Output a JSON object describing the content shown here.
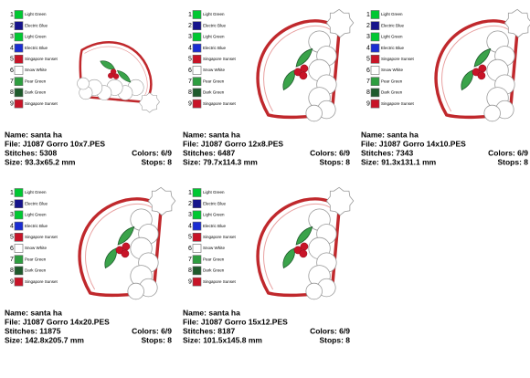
{
  "panels": [
    {
      "colors": [
        {
          "number": 1,
          "name": "Light Green",
          "color": "#00c832"
        },
        {
          "number": 2,
          "name": "Electric Blue",
          "color": "#16148c"
        },
        {
          "number": 3,
          "name": "Light Green",
          "color": "#00c832"
        },
        {
          "number": 4,
          "name": "Electric Blue",
          "color": "#1a2dd2"
        },
        {
          "number": 5,
          "name": "Singapore Sunset",
          "color": "#c81428"
        },
        {
          "number": 6,
          "name": "Snow White",
          "color": "#ffffff"
        },
        {
          "number": 7,
          "name": "Pear Green",
          "color": "#2e9e40"
        },
        {
          "number": 8,
          "name": "Dark Green",
          "color": "#1e5a2c"
        },
        {
          "number": 9,
          "name": "Singapore Sunset",
          "color": "#c81428"
        }
      ],
      "name": "Name: santa ha",
      "file": "File: J1087 Gorro 10x7.PES",
      "stitches": "Stitches: 5308",
      "colors_count": "Colors: 6/9",
      "size": "Size: 93.3x65.2 mm",
      "stops": "Stops: 8"
    },
    {
      "colors": [
        {
          "number": 1,
          "name": "Light Green",
          "color": "#00c832"
        },
        {
          "number": 2,
          "name": "Electric Blue",
          "color": "#16148c"
        },
        {
          "number": 3,
          "name": "Light Green",
          "color": "#00c832"
        },
        {
          "number": 4,
          "name": "Electric Blue",
          "color": "#1a2dd2"
        },
        {
          "number": 5,
          "name": "Singapore Sunset",
          "color": "#c81428"
        },
        {
          "number": 6,
          "name": "Snow White",
          "color": "#ffffff"
        },
        {
          "number": 7,
          "name": "Pear Green",
          "color": "#2e9e40"
        },
        {
          "number": 8,
          "name": "Dark Green",
          "color": "#1e5a2c"
        },
        {
          "number": 9,
          "name": "Singapore Sunset",
          "color": "#c81428"
        }
      ],
      "name": "Name: santa ha",
      "file": "File: J1087 Gorro 12x8.PES",
      "stitches": "Stitches: 6487",
      "colors_count": "Colors: 6/9",
      "size": "Size: 79.7x114.3 mm",
      "stops": "Stops: 8"
    },
    {
      "colors": [
        {
          "number": 1,
          "name": "Light Green",
          "color": "#00c832"
        },
        {
          "number": 2,
          "name": "Electric Blue",
          "color": "#16148c"
        },
        {
          "number": 3,
          "name": "Light Green",
          "color": "#00c832"
        },
        {
          "number": 4,
          "name": "Electric Blue",
          "color": "#1a2dd2"
        },
        {
          "number": 5,
          "name": "Singapore Sunset",
          "color": "#c81428"
        },
        {
          "number": 6,
          "name": "Snow White",
          "color": "#ffffff"
        },
        {
          "number": 7,
          "name": "Pear Green",
          "color": "#2e9e40"
        },
        {
          "number": 8,
          "name": "Dark Green",
          "color": "#1e5a2c"
        },
        {
          "number": 9,
          "name": "Singapore Sunset",
          "color": "#c81428"
        }
      ],
      "name": "Name: santa ha",
      "file": "File: J1087 Gorro 14x10.PES",
      "stitches": "Stitches: 7343",
      "colors_count": "Colors: 6/9",
      "size": "Size: 91.3x131.1 mm",
      "stops": "Stops: 8"
    },
    {
      "colors": [
        {
          "number": 1,
          "name": "Light Green",
          "color": "#00c832"
        },
        {
          "number": 2,
          "name": "Electric Blue",
          "color": "#16148c"
        },
        {
          "number": 3,
          "name": "Light Green",
          "color": "#00c832"
        },
        {
          "number": 4,
          "name": "Electric Blue",
          "color": "#1a2dd2"
        },
        {
          "number": 5,
          "name": "Singapore Sunset",
          "color": "#c81428"
        },
        {
          "number": 6,
          "name": "Snow White",
          "color": "#ffffff"
        },
        {
          "number": 7,
          "name": "Pear Green",
          "color": "#2e9e40"
        },
        {
          "number": 8,
          "name": "Dark Green",
          "color": "#1e5a2c"
        },
        {
          "number": 9,
          "name": "Singapore Sunset",
          "color": "#c81428"
        }
      ],
      "name": "Name: santa ha",
      "file": "File: J1087 Gorro 14x20.PES",
      "stitches": "Stitches: 11875",
      "colors_count": "Colors: 6/9",
      "size": "Size: 142.8x205.7 mm",
      "stops": "Stops: 8"
    },
    {
      "colors": [
        {
          "number": 1,
          "name": "Light Green",
          "color": "#00c832"
        },
        {
          "number": 2,
          "name": "Electric Blue",
          "color": "#16148c"
        },
        {
          "number": 3,
          "name": "Light Green",
          "color": "#00c832"
        },
        {
          "number": 4,
          "name": "Electric Blue",
          "color": "#1a2dd2"
        },
        {
          "number": 5,
          "name": "Singapore Sunset",
          "color": "#c81428"
        },
        {
          "number": 6,
          "name": "Snow White",
          "color": "#ffffff"
        },
        {
          "number": 7,
          "name": "Pear Green",
          "color": "#2e9e40"
        },
        {
          "number": 8,
          "name": "Dark Green",
          "color": "#1e5a2c"
        },
        {
          "number": 9,
          "name": "Singapore Sunset",
          "color": "#c81428"
        }
      ],
      "name": "Name: santa ha",
      "file": "File: J1087 Gorro 15x12.PES",
      "stitches": "Stitches: 8187",
      "colors_count": "Colors: 6/9",
      "size": "Size: 101.5x145.8 mm",
      "stops": "Stops: 8"
    }
  ]
}
